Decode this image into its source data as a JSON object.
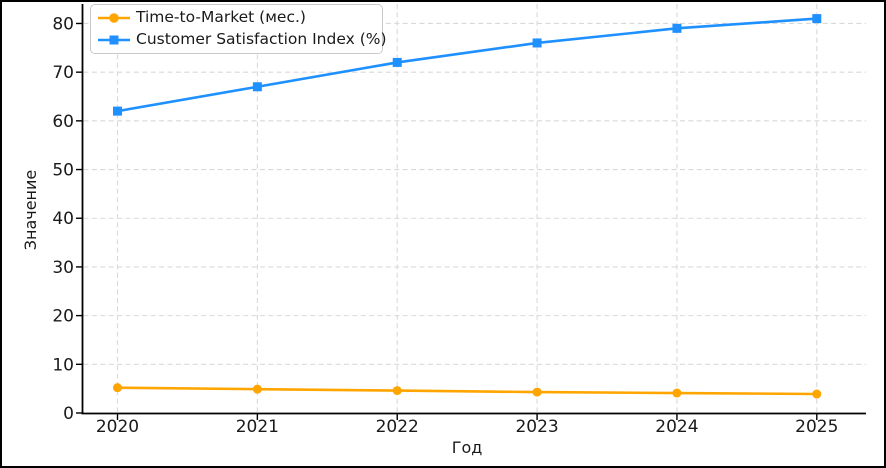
{
  "figure": {
    "background": "#ffffff",
    "frame_color": "#000000",
    "grid_color": "#d9d9d9",
    "text_color": "#1a1a1a"
  },
  "chart_data": {
    "type": "line",
    "title": "",
    "xlabel": "Год",
    "ylabel": "Значение",
    "x": [
      2020,
      2021,
      2022,
      2023,
      2024,
      2025
    ],
    "yticks": [
      0,
      10,
      20,
      30,
      40,
      50,
      60,
      70,
      80
    ],
    "ylim": [
      0,
      84
    ],
    "grid": true,
    "grid_style": "dashed",
    "legend_position": "upper-left",
    "series": [
      {
        "name": "Time-to-Market (мес.)",
        "color": "#FFA500",
        "marker": "circle",
        "values": [
          5.2,
          4.9,
          4.6,
          4.3,
          4.1,
          3.9
        ]
      },
      {
        "name": "Customer Satisfaction Index (%)",
        "color": "#1E90FF",
        "marker": "square",
        "values": [
          62,
          67,
          72,
          76,
          79,
          81
        ]
      }
    ]
  }
}
